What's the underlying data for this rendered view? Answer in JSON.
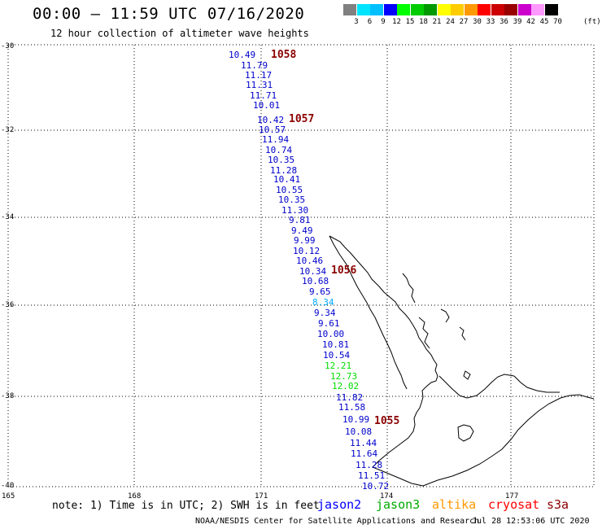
{
  "header": {
    "title": "00:00 – 11:59 UTC 07/16/2020",
    "subtitle": "12 hour collection of altimeter wave heights"
  },
  "colorbar": {
    "labels": [
      "3",
      "6",
      "9",
      "12",
      "15",
      "18",
      "21",
      "24",
      "27",
      "30",
      "33",
      "36",
      "39",
      "42",
      "45",
      "70"
    ],
    "colors": [
      "#808080",
      "#00e5ff",
      "#00bfff",
      "#0000ff",
      "#00ff00",
      "#00cc00",
      "#009900",
      "#ffff00",
      "#ffcc00",
      "#ff9900",
      "#ff0000",
      "#cc0000",
      "#990000",
      "#cc00cc",
      "#ff99ff",
      "#000000"
    ],
    "unit": "(ft)"
  },
  "axes": {
    "lat_labels": [
      "-30",
      "-32",
      "-34",
      "-36",
      "-38",
      "-40"
    ],
    "lon_labels": [
      "165",
      "168",
      "171",
      "174",
      "177"
    ]
  },
  "track": {
    "swh_values": [
      "10.49",
      "11.79",
      "11.17",
      "11.31",
      "11.71",
      "10.01",
      "10.42",
      "10.57",
      "11.94",
      "10.74",
      "10.35",
      "11.28",
      "10.41",
      "10.55",
      "10.35",
      "11.30",
      "9.81",
      "9.49",
      "9.99",
      "10.12",
      "10.46",
      "10.34",
      "10.68",
      "9.65",
      "8.34",
      "9.34",
      "9.61",
      "10.00",
      "10.81",
      "10.54",
      "12.21",
      "12.73",
      "12.02",
      "11.82",
      "11.58",
      "10.99",
      "10.08",
      "11.44",
      "11.64",
      "11.28",
      "11.51",
      "10.72"
    ],
    "times": [
      "1058",
      "1057",
      "1056",
      "1055"
    ],
    "colors": {
      "blue": "#0000cc",
      "light_blue": "#00aaff",
      "green": "#00dd00",
      "time": "#8b0000"
    }
  },
  "footer": {
    "note": "note:  1) Time is in UTC;  2) SWH is in feet",
    "satellites": [
      {
        "name": "jason2",
        "color": "#0000ff"
      },
      {
        "name": "jason3",
        "color": "#00aa00"
      },
      {
        "name": "altika",
        "color": "#ff9900"
      },
      {
        "name": "cryosat",
        "color": "#ff0000"
      },
      {
        "name": "s3a",
        "color": "#8b0000"
      }
    ],
    "credit": "NOAA/NESDIS Center for Satellite Applications and Research",
    "timestamp": "Jul 28 12:53:06 UTC 2020"
  }
}
